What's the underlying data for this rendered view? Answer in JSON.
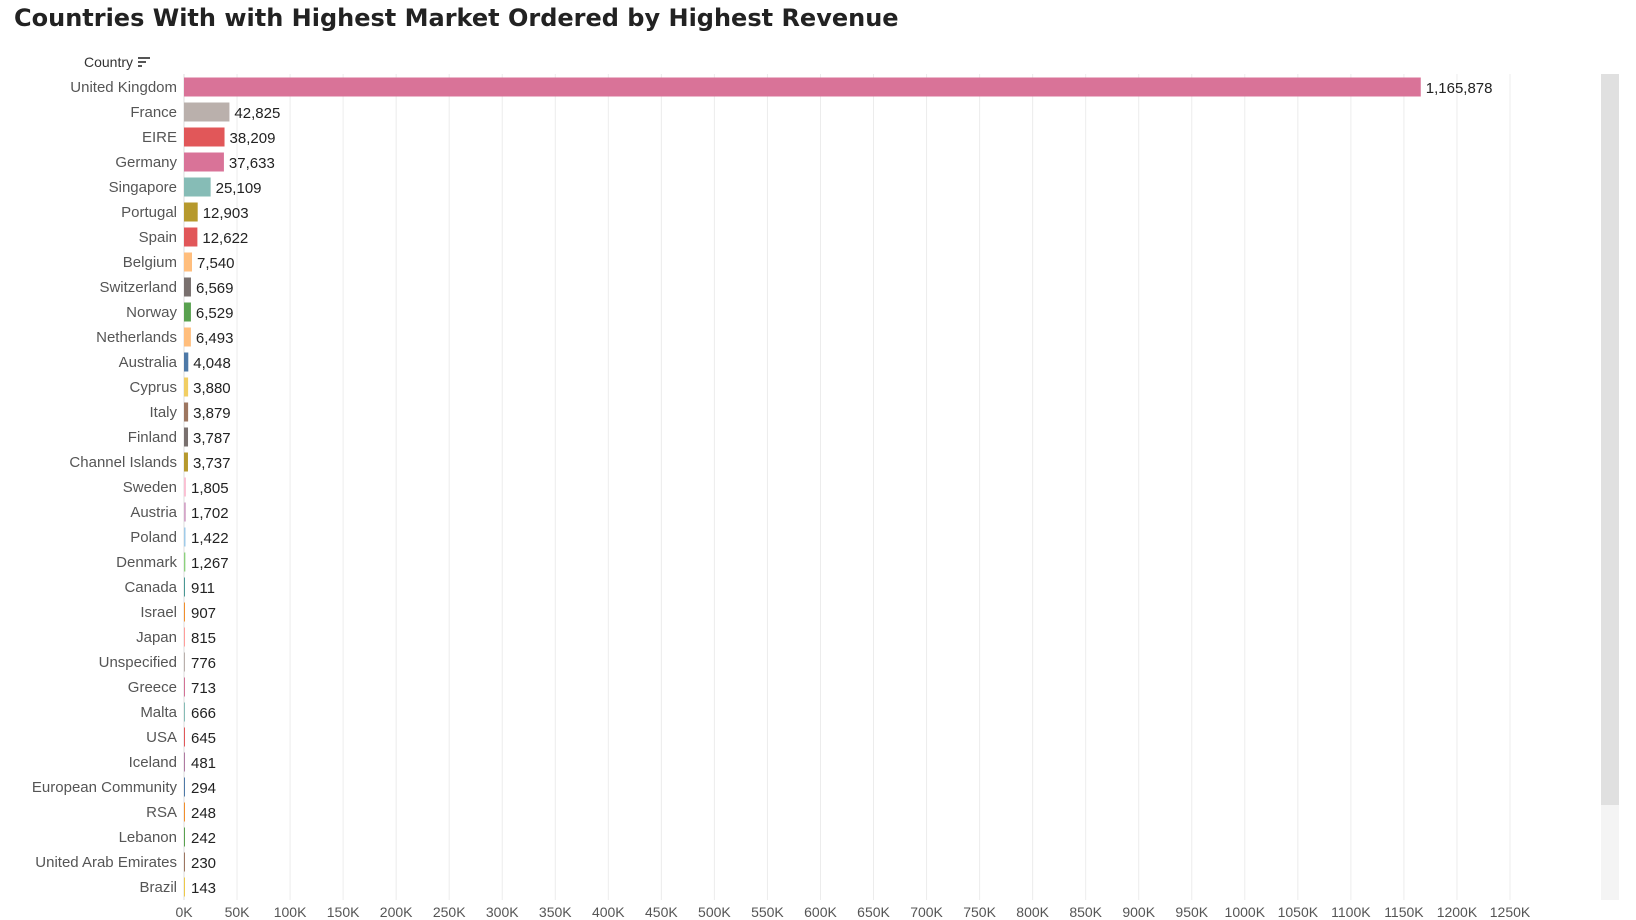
{
  "title": "Countries With with Highest Market Ordered by Highest Revenue",
  "field_label": "Country",
  "sort_icon": "sort-descending-icon",
  "chart_data": {
    "type": "bar",
    "orientation": "horizontal",
    "title": "Countries With with Highest Market Ordered by Highest Revenue",
    "ylabel": "Country",
    "xlabel": "",
    "xlim": [
      0,
      1250000
    ],
    "x_ticks": [
      "0K",
      "50K",
      "100K",
      "150K",
      "200K",
      "250K",
      "300K",
      "350K",
      "400K",
      "450K",
      "500K",
      "550K",
      "600K",
      "650K",
      "700K",
      "750K",
      "800K",
      "850K",
      "900K",
      "950K",
      "1000K",
      "1050K",
      "1100K",
      "1150K",
      "1200K",
      "1250K"
    ],
    "grid": "vertical",
    "categories": [
      "United Kingdom",
      "France",
      "EIRE",
      "Germany",
      "Singapore",
      "Portugal",
      "Spain",
      "Belgium",
      "Switzerland",
      "Norway",
      "Netherlands",
      "Australia",
      "Cyprus",
      "Italy",
      "Finland",
      "Channel Islands",
      "Sweden",
      "Austria",
      "Poland",
      "Denmark",
      "Canada",
      "Israel",
      "Japan",
      "Unspecified",
      "Greece",
      "Malta",
      "USA",
      "Iceland",
      "European Community",
      "RSA",
      "Lebanon",
      "United Arab Emirates",
      "Brazil"
    ],
    "values": [
      1165878,
      42825,
      38209,
      37633,
      25109,
      12903,
      12622,
      7540,
      6569,
      6529,
      6493,
      4048,
      3880,
      3879,
      3787,
      3737,
      1805,
      1702,
      1422,
      1267,
      911,
      907,
      815,
      776,
      713,
      666,
      645,
      481,
      294,
      248,
      242,
      230,
      143
    ],
    "labels": [
      "1,165,878",
      "42,825",
      "38,209",
      "37,633",
      "25,109",
      "12,903",
      "12,622",
      "7,540",
      "6,569",
      "6,529",
      "6,493",
      "4,048",
      "3,880",
      "3,879",
      "3,787",
      "3,737",
      "1,805",
      "1,702",
      "1,422",
      "1,267",
      "911",
      "907",
      "815",
      "776",
      "713",
      "666",
      "645",
      "481",
      "294",
      "248",
      "242",
      "230",
      "143"
    ],
    "colors": [
      "#d97398",
      "#bab0ac",
      "#e15759",
      "#d97398",
      "#86bcb6",
      "#b6992d",
      "#e15759",
      "#ffbe7d",
      "#79706e",
      "#59a14f",
      "#ffbe7d",
      "#4e79a7",
      "#f1ce63",
      "#9d7660",
      "#79706e",
      "#b6992d",
      "#fabfd2",
      "#d4a6c8",
      "#a0cbe8",
      "#8cd17d",
      "#499894",
      "#f28e2b",
      "#ff9d9a",
      "#bab0ac",
      "#d37295",
      "#86bcb6",
      "#e15759",
      "#b07aa1",
      "#4e79a7",
      "#f28e2b",
      "#59a14f",
      "#9d7660",
      "#edc948"
    ]
  }
}
